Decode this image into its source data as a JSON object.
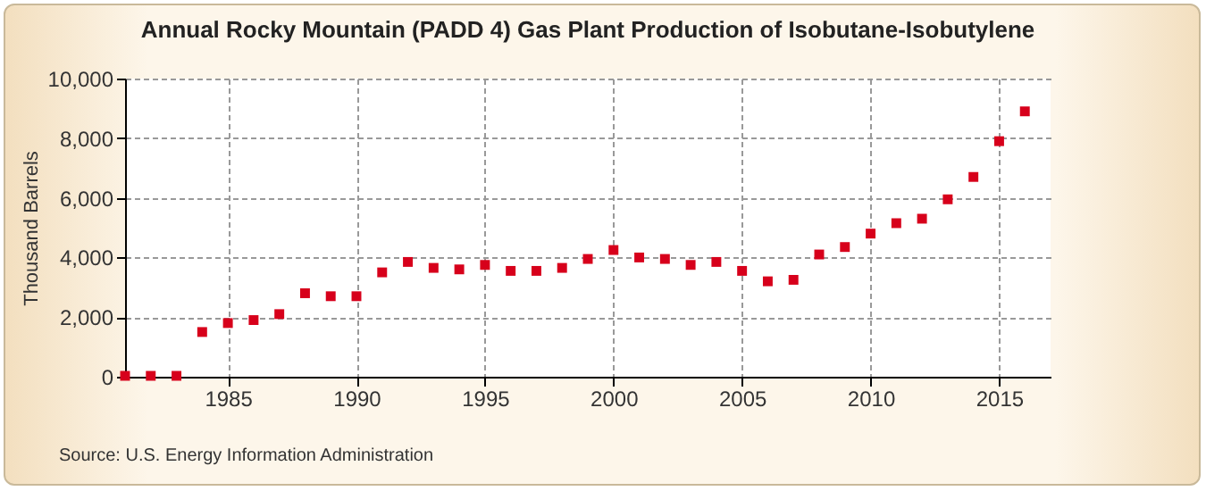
{
  "chart_data": {
    "type": "scatter",
    "title": "Annual Rocky Mountain (PADD 4) Gas Plant Production of Isobutane-Isobutylene",
    "ylabel": "Thousand Barrels",
    "annotations": [
      "Source: U.S. Energy Information Administration"
    ],
    "x": [
      1981,
      1982,
      1983,
      1984,
      1985,
      1986,
      1987,
      1988,
      1989,
      1990,
      1991,
      1992,
      1993,
      1994,
      1995,
      1996,
      1997,
      1998,
      1999,
      2000,
      2001,
      2002,
      2003,
      2004,
      2005,
      2006,
      2007,
      2008,
      2009,
      2010,
      2011,
      2012,
      2013,
      2014,
      2015,
      2016
    ],
    "series": [
      {
        "color": "#d7001b",
        "values": [
          30,
          30,
          30,
          1500,
          1800,
          1900,
          2100,
          2800,
          2700,
          2700,
          3500,
          3850,
          3650,
          3600,
          3750,
          3550,
          3550,
          3650,
          3950,
          4250,
          4000,
          3950,
          3750,
          3850,
          3550,
          3200,
          3250,
          4100,
          4350,
          4800,
          5150,
          5300,
          5950,
          6700,
          7900,
          8900
        ]
      }
    ],
    "xlim": [
      1981,
      2017
    ],
    "xticks": [
      1985,
      1990,
      1995,
      2000,
      2005,
      2010,
      2015
    ],
    "ylim": [
      0,
      10000
    ],
    "yticks": [
      {
        "value": 0,
        "label": "0"
      },
      {
        "value": 2000,
        "label": "2,000"
      },
      {
        "value": 4000,
        "label": "4,000"
      },
      {
        "value": 6000,
        "label": "6,000"
      },
      {
        "value": 8000,
        "label": "8,000"
      },
      {
        "value": 10000,
        "label": "10,000"
      }
    ],
    "grid": true,
    "marker": "square"
  }
}
